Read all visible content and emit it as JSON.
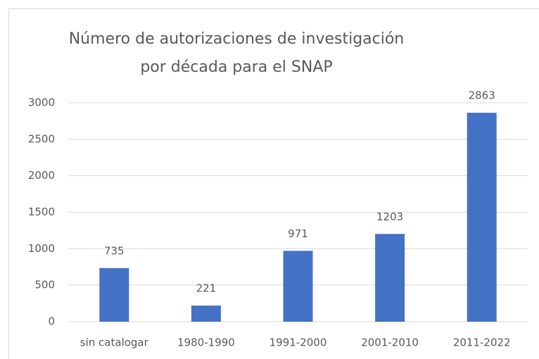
{
  "chart_data": {
    "type": "bar",
    "title": [
      "Número de autorizaciones de investigación",
      "por década para el SNAP"
    ],
    "categories": [
      "sin catalogar",
      "1980-1990",
      "1991-2000",
      "2001-2010",
      "2011-2022"
    ],
    "values": [
      735,
      221,
      971,
      1203,
      2863
    ],
    "color": "#4472c4",
    "ylim": [
      0,
      3000
    ],
    "yticks": [
      0,
      500,
      1000,
      1500,
      2000,
      2500,
      3000
    ],
    "grid": true
  }
}
